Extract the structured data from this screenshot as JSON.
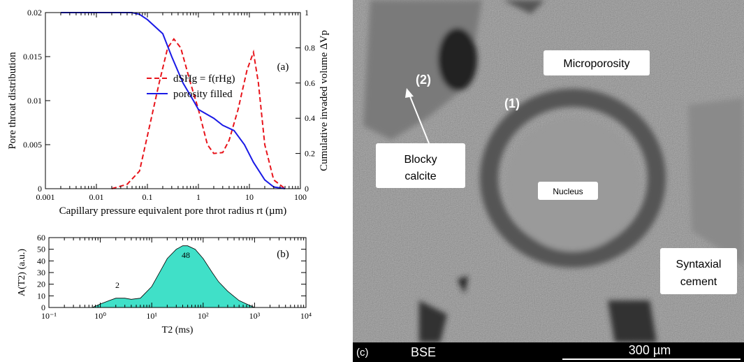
{
  "chart_data": [
    {
      "type": "line",
      "xscale": "log",
      "xlim": [
        0.001,
        100
      ],
      "xticks": [
        0.001,
        0.01,
        0.1,
        1,
        10,
        100
      ],
      "ylim": [
        0,
        0.02
      ],
      "yticks": [
        0,
        0.005,
        0.01,
        0.015,
        0.02
      ],
      "y2lim": [
        0,
        1
      ],
      "y2ticks": [
        0,
        0.2,
        0.4,
        0.6,
        0.8,
        1
      ],
      "xlabel": "Capillary pressure equivalent pore throt radius rt (µm)",
      "ylabel": "Pore throat distribution",
      "y2label": "Cumulative invaded volume ΔVp",
      "annotations": [
        "(a)"
      ],
      "legend": "center",
      "series": [
        {
          "name": "dSHg = f(rHg)",
          "color": "#e8141b",
          "dash": true,
          "x": [
            0.02,
            0.04,
            0.07,
            0.1,
            0.17,
            0.25,
            0.33,
            0.45,
            0.7,
            1,
            1.5,
            2,
            3,
            4,
            6,
            9,
            12,
            15,
            20,
            30,
            50
          ],
          "values": [
            0,
            0.0005,
            0.002,
            0.006,
            0.012,
            0.016,
            0.017,
            0.016,
            0.012,
            0.009,
            0.005,
            0.004,
            0.0041,
            0.0055,
            0.009,
            0.0135,
            0.0155,
            0.012,
            0.005,
            0.001,
            0
          ]
        },
        {
          "name": "porosity filled",
          "color": "#1a1ae6",
          "axis": "y2",
          "x": [
            0.002,
            0.05,
            0.07,
            0.1,
            0.2,
            0.3,
            0.5,
            0.8,
            1,
            2,
            3,
            5,
            8,
            12,
            20,
            30,
            50
          ],
          "values": [
            1,
            1,
            0.99,
            0.96,
            0.88,
            0.75,
            0.6,
            0.5,
            0.45,
            0.4,
            0.36,
            0.33,
            0.25,
            0.15,
            0.05,
            0.01,
            0
          ]
        }
      ]
    },
    {
      "type": "area",
      "xscale": "log",
      "xlim": [
        0.1,
        10000
      ],
      "xticks": [
        {
          "value": 0.1,
          "label": "10⁻¹"
        },
        {
          "value": 1,
          "label": "10⁰"
        },
        {
          "value": 10,
          "label": "10¹"
        },
        {
          "value": 100,
          "label": "10²"
        },
        {
          "value": 1000,
          "label": "10³"
        },
        {
          "value": 10000,
          "label": "10⁴"
        }
      ],
      "ylim": [
        0,
        60
      ],
      "yticks": [
        0,
        10,
        20,
        30,
        40,
        50,
        60
      ],
      "xlabel": "T2 (ms)",
      "ylabel": "A(T2) (a.u.)",
      "annotations": [
        "(b)",
        "2",
        "48"
      ],
      "series": [
        {
          "color": "#40e0c8",
          "x": [
            0.7,
            1,
            1.5,
            2,
            3,
            4,
            6,
            10,
            15,
            20,
            30,
            40,
            50,
            70,
            100,
            150,
            200,
            300,
            500,
            700,
            1000
          ],
          "values": [
            0,
            3,
            6,
            8,
            8,
            7,
            8,
            18,
            32,
            42,
            50,
            53,
            53,
            50,
            42,
            30,
            22,
            14,
            6,
            3,
            0
          ]
        }
      ]
    }
  ],
  "image": {
    "panel": "(c)",
    "mode": "BSE",
    "scale": "300 µm",
    "microporosity": "Microporosity",
    "site1": "(1)",
    "site2": "(2)",
    "blocky": [
      "Blocky",
      "calcite"
    ],
    "nucleus": "Nucleus",
    "syntaxial": [
      "Syntaxial",
      "cement"
    ]
  }
}
